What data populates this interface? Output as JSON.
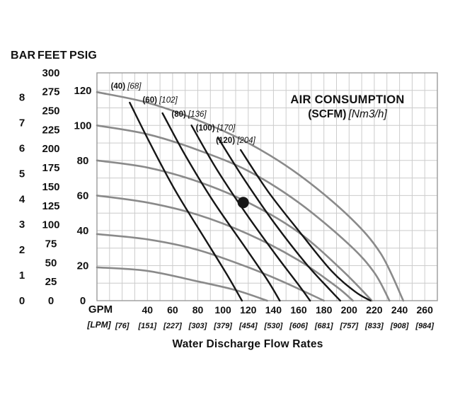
{
  "page": {
    "axis_header": {
      "bar": "BAR",
      "feet": "FEET",
      "psig": "PSIG"
    },
    "x_header": {
      "gpm": "GPM",
      "lpm": "[LPM]"
    },
    "air_title": {
      "line1": "AIR CONSUMPTION",
      "bold2": "(SCFM)",
      "italic2": "[Nm3/h]"
    },
    "bottom_title": "Water Discharge Flow Rates"
  },
  "chart_data": {
    "type": "line",
    "title": "Water Discharge Flow Rates",
    "legend": "AIR CONSUMPTION (SCFM) [Nm3/h]",
    "x_axis": {
      "label": "GPM",
      "alt_label": "[LPM]",
      "range": [
        0,
        270
      ],
      "grid_step": 10,
      "gpm_ticks": [
        40,
        60,
        80,
        100,
        120,
        140,
        160,
        180,
        200,
        220,
        240,
        260
      ],
      "lpm_ticks": [
        "[76]",
        "[151]",
        "[227]",
        "[303]",
        "[379]",
        "[454]",
        "[530]",
        "[606]",
        "[681]",
        "[757]",
        "[833]",
        "[908]",
        "[984]"
      ],
      "lpm_tick_gpm": [
        20,
        40,
        60,
        80,
        100,
        120,
        140,
        160,
        180,
        200,
        220,
        240,
        260
      ]
    },
    "y_axis": {
      "psig_range": [
        0,
        130
      ],
      "grid_step": 10,
      "psig_ticks": [
        0,
        20,
        40,
        60,
        80,
        100,
        120
      ],
      "feet_ticks": [
        0,
        25,
        50,
        75,
        100,
        125,
        150,
        175,
        200,
        225,
        250,
        275,
        300
      ],
      "bar_ticks": [
        0,
        1,
        2,
        3,
        4,
        5,
        6,
        7,
        8
      ],
      "feet_per_psi": 2.3067,
      "psi_per_bar": 14.5038
    },
    "water_curves": [
      {
        "name": "water-curve-120psi",
        "points": [
          [
            0,
            119
          ],
          [
            40,
            113
          ],
          [
            80,
            103
          ],
          [
            120,
            90
          ],
          [
            160,
            72
          ],
          [
            200,
            48
          ],
          [
            225,
            27
          ],
          [
            243,
            0
          ]
        ]
      },
      {
        "name": "water-curve-100psi",
        "points": [
          [
            0,
            100
          ],
          [
            40,
            95
          ],
          [
            80,
            86
          ],
          [
            120,
            74
          ],
          [
            160,
            56
          ],
          [
            200,
            32
          ],
          [
            220,
            16
          ],
          [
            232,
            0
          ]
        ]
      },
      {
        "name": "water-curve-80psi",
        "points": [
          [
            0,
            80
          ],
          [
            40,
            76
          ],
          [
            80,
            68
          ],
          [
            120,
            56
          ],
          [
            160,
            39
          ],
          [
            195,
            17
          ],
          [
            218,
            0
          ]
        ]
      },
      {
        "name": "water-curve-60psi",
        "points": [
          [
            0,
            60
          ],
          [
            40,
            56
          ],
          [
            80,
            49
          ],
          [
            120,
            38
          ],
          [
            160,
            23
          ],
          [
            190,
            8
          ],
          [
            203,
            0
          ]
        ]
      },
      {
        "name": "water-curve-40psi",
        "points": [
          [
            0,
            38
          ],
          [
            40,
            35
          ],
          [
            80,
            29
          ],
          [
            120,
            19
          ],
          [
            150,
            10
          ],
          [
            180,
            0
          ]
        ]
      },
      {
        "name": "water-curve-20psi",
        "points": [
          [
            0,
            19
          ],
          [
            40,
            17
          ],
          [
            80,
            11
          ],
          [
            110,
            6
          ],
          [
            135,
            0
          ]
        ]
      }
    ],
    "air_curves": [
      {
        "label_bold": "(40)",
        "label_italic": "[68]",
        "label_pos": [
          23,
          121
        ],
        "points": [
          [
            26,
            113
          ],
          [
            42,
            90
          ],
          [
            62,
            63
          ],
          [
            85,
            36
          ],
          [
            103,
            15
          ],
          [
            115,
            0
          ]
        ]
      },
      {
        "label_bold": "(60)",
        "label_italic": "[102]",
        "label_pos": [
          50,
          113
        ],
        "points": [
          [
            52,
            107
          ],
          [
            70,
            83
          ],
          [
            92,
            57
          ],
          [
            116,
            32
          ],
          [
            135,
            12
          ],
          [
            145,
            0
          ]
        ]
      },
      {
        "label_bold": "(80)",
        "label_italic": "[136]",
        "label_pos": [
          73,
          105
        ],
        "points": [
          [
            75,
            100
          ],
          [
            95,
            75
          ],
          [
            118,
            50
          ],
          [
            142,
            26
          ],
          [
            161,
            8
          ],
          [
            169,
            0
          ]
        ]
      },
      {
        "label_bold": "(100)",
        "label_italic": "[170]",
        "label_pos": [
          94,
          97
        ],
        "points": [
          [
            96,
            93
          ],
          [
            117,
            69
          ],
          [
            141,
            44
          ],
          [
            166,
            21
          ],
          [
            185,
            6
          ],
          [
            193,
            0
          ]
        ]
      },
      {
        "label_bold": "(120)",
        "label_italic": "[204]",
        "label_pos": [
          110,
          90
        ],
        "points": [
          [
            114,
            86
          ],
          [
            136,
            62
          ],
          [
            161,
            39
          ],
          [
            186,
            17
          ],
          [
            205,
            5
          ],
          [
            217,
            0
          ]
        ]
      }
    ],
    "operating_point": {
      "gpm": 116,
      "psig": 56,
      "radius": 8
    },
    "colors": {
      "water_curve": "#8a8a8a",
      "air_curve": "#161616",
      "grid": "#cccccc",
      "frame": "#9b9b9b",
      "text": "#111111",
      "background": "#ffffff"
    }
  }
}
